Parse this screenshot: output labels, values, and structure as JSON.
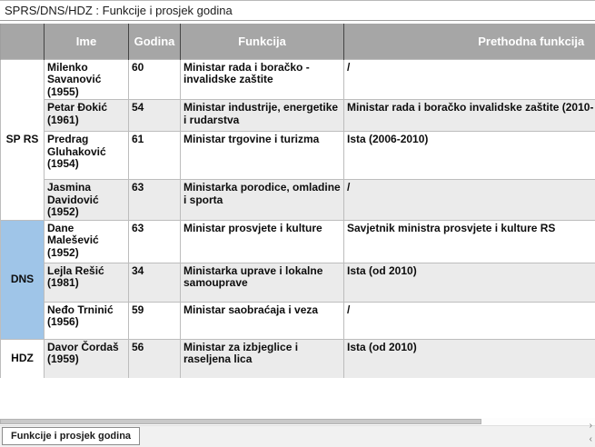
{
  "title": "SPRS/DNS/HDZ : Funkcije i prosjek godina",
  "table": {
    "headers": [
      "",
      "Ime",
      "Godina",
      "Funkcija",
      "Prethodna funkcija"
    ],
    "groups": [
      {
        "label": "SP RS",
        "color": "#ffffff",
        "rows": [
          {
            "ime": "Milenko Savanović (1955)",
            "godina": "60",
            "funkcija": "Ministar rada i boračko - invalidske zaštite",
            "prethodna": "/"
          },
          {
            "ime": "Petar Đokić (1961)",
            "godina": "54",
            "funkcija": "Ministar industrije, energetike i rudarstva",
            "prethodna": "Ministar rada i boračko invalidske zaštite (2010-"
          },
          {
            "ime": "Predrag Gluhaković (1954)",
            "godina": "61",
            "funkcija": "Ministar trgovine i turizma",
            "prethodna": "Ista (2006-2010)"
          },
          {
            "ime": "Jasmina Davidović (1952)",
            "godina": "63",
            "funkcija": "Ministarka porodice, omladine i sporta",
            "prethodna": "/"
          }
        ]
      },
      {
        "label": "DNS",
        "color": "#9fc5e8",
        "rows": [
          {
            "ime": "Dane Malešević (1952)",
            "godina": "63",
            "funkcija": "Ministar prosvjete i kulture",
            "prethodna": "Savjetnik ministra prosvjete i kulture RS"
          },
          {
            "ime": "Lejla Rešić (1981)",
            "godina": "34",
            "funkcija": "Ministarka uprave i lokalne samouprave",
            "prethodna": "Ista (od 2010)"
          },
          {
            "ime": "Neđo Trninić (1956)",
            "godina": "59",
            "funkcija": "Ministar saobraćaja i veza",
            "prethodna": "/"
          }
        ]
      },
      {
        "label": "HDZ",
        "color": "#ffffff",
        "rows": [
          {
            "ime": "Davor Čordaš (1959)",
            "godina": "56",
            "funkcija": "Ministar za izbjeglice i raseljena lica",
            "prethodna": "Ista (od 2010)"
          }
        ]
      }
    ]
  },
  "bottom": {
    "tab_label": "Funkcije i prosjek godina",
    "scroll_right_icon": "›",
    "scroll_left_icon": "‹"
  },
  "colors": {
    "header_bg": "#a6a6a6",
    "row_alt_bg": "#ebebeb",
    "dns_group_bg": "#9fc5e8"
  }
}
